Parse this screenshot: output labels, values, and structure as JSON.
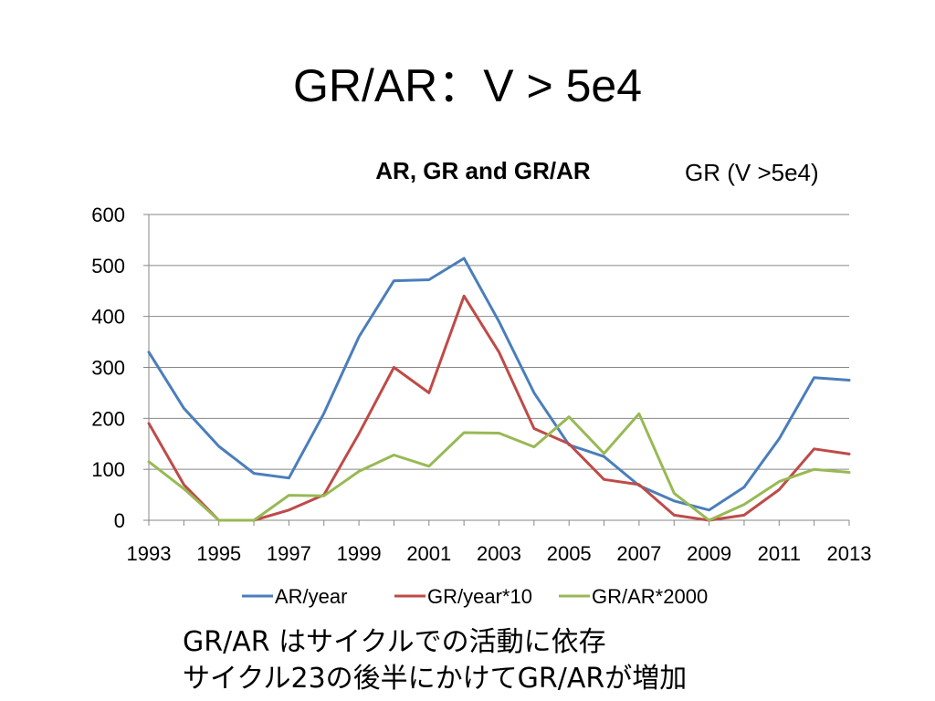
{
  "slide": {
    "title": "GR/AR：V > 5e4",
    "gr_label": "GR (V >5e4)",
    "notes": [
      "GR/AR はサイクルでの活動に依存",
      "サイクル23の後半にかけてGR/ARが増加"
    ]
  },
  "chart_data": {
    "type": "line",
    "title": "AR, GR and GR/AR",
    "xlabel": "",
    "ylabel": "",
    "x": [
      1993,
      1994,
      1995,
      1996,
      1997,
      1998,
      1999,
      2000,
      2001,
      2002,
      2003,
      2004,
      2005,
      2006,
      2007,
      2008,
      2009,
      2010,
      2011,
      2012,
      2013
    ],
    "xticks": [
      "1993",
      "1995",
      "1997",
      "1999",
      "2001",
      "2003",
      "2005",
      "2007",
      "2009",
      "2011",
      "2013"
    ],
    "yticks": [
      "0",
      "100",
      "200",
      "300",
      "400",
      "500",
      "600"
    ],
    "ylim": [
      0,
      600
    ],
    "grid": "horizontal",
    "legend_position": "bottom",
    "series": [
      {
        "name": "AR/year",
        "color": "#4a7ebb",
        "values": [
          330,
          220,
          145,
          92,
          83,
          210,
          360,
          470,
          472,
          514,
          390,
          250,
          148,
          125,
          68,
          38,
          20,
          65,
          160,
          280,
          275
        ]
      },
      {
        "name": "GR/year*10",
        "color": "#be4b48",
        "values": [
          190,
          70,
          0,
          0,
          20,
          50,
          170,
          300,
          250,
          440,
          330,
          180,
          150,
          80,
          70,
          10,
          0,
          10,
          60,
          140,
          130
        ]
      },
      {
        "name": "GR/AR*2000",
        "color": "#98b954",
        "values": [
          115,
          62,
          0,
          0,
          49,
          48,
          96,
          128,
          106,
          172,
          171,
          144,
          203,
          131,
          209,
          53,
          0,
          31,
          76,
          100,
          94
        ]
      }
    ]
  }
}
